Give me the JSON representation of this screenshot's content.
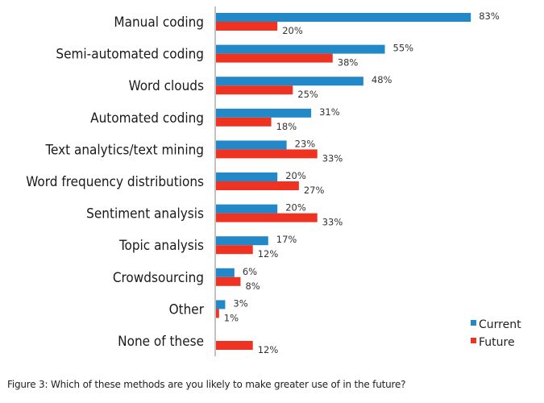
{
  "chart_data": {
    "type": "bar",
    "orientation": "horizontal",
    "title": "",
    "xlabel": "",
    "ylabel": "",
    "xlim": [
      0,
      100
    ],
    "grid": false,
    "legend_position": "bottom-right",
    "categories": [
      "Manual coding",
      "Semi-automated coding",
      "Word clouds",
      "Automated coding",
      "Text analytics/text mining",
      "Word frequency distributions",
      "Sentiment analysis",
      "Topic analysis",
      "Crowdsourcing",
      "Other",
      "None of these"
    ],
    "series": [
      {
        "name": "Current",
        "color": "#2288c8",
        "values": [
          83,
          55,
          48,
          31,
          23,
          20,
          20,
          17,
          6,
          3,
          null
        ],
        "labels": [
          "83%",
          "55%",
          "48%",
          "31%",
          "23%",
          "20%",
          "20%",
          "17%",
          "6%",
          "3%",
          null
        ]
      },
      {
        "name": "Future",
        "color": "#ee3322",
        "values": [
          20,
          38,
          25,
          18,
          33,
          27,
          33,
          12,
          8,
          1,
          12
        ],
        "labels": [
          "20%",
          "38%",
          "25%",
          "18%",
          "33%",
          "27%",
          "33%",
          "12%",
          "8%",
          "1%",
          "12%"
        ]
      }
    ]
  },
  "caption": "Figure 3: Which of these methods are you likely to make greater use of in the future?"
}
